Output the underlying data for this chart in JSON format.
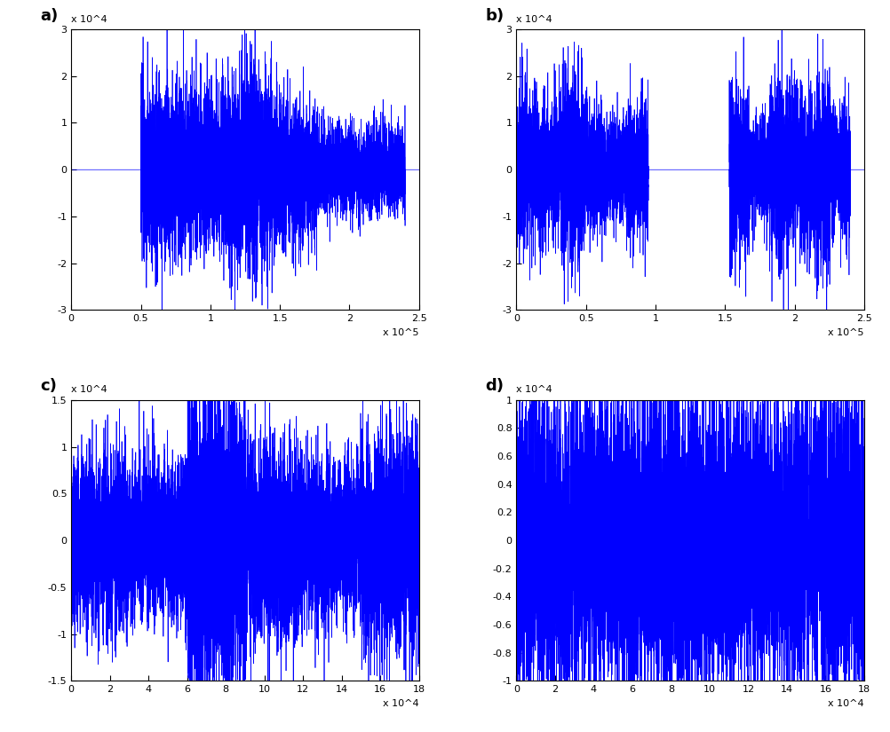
{
  "plot_color": "#0000FF",
  "background_color": "#FFFFFF",
  "panels": [
    {
      "label": "a)",
      "xlim": [
        0,
        250000
      ],
      "ylim": [
        -30000,
        30000
      ],
      "yticks": [
        -30000,
        -20000,
        -10000,
        0,
        10000,
        20000,
        30000
      ],
      "ytick_labels": [
        "-3",
        "-2",
        "-1",
        "0",
        "1",
        "2",
        "3"
      ],
      "xticks": [
        0,
        50000,
        100000,
        150000,
        200000,
        250000
      ],
      "xtick_labels": [
        "0",
        "0.5",
        "1",
        "1.5",
        "2",
        "2.5"
      ],
      "xscale_label": "x 10^5",
      "yscale_label": "x 10^4",
      "signal_start": 50000,
      "signal_end": 240000,
      "gap_start": -1,
      "gap_end": -1,
      "has_gap": false,
      "amplitude": 12000,
      "peak_amplitude": 27000
    },
    {
      "label": "b)",
      "xlim": [
        0,
        250000
      ],
      "ylim": [
        -30000,
        30000
      ],
      "yticks": [
        -30000,
        -20000,
        -10000,
        0,
        10000,
        20000,
        30000
      ],
      "ytick_labels": [
        "-3",
        "-2",
        "-1",
        "0",
        "1",
        "2",
        "3"
      ],
      "xticks": [
        0,
        50000,
        100000,
        150000,
        200000,
        250000
      ],
      "xtick_labels": [
        "0",
        "0.5",
        "1",
        "1.5",
        "2",
        "2.5"
      ],
      "xscale_label": "x 10^5",
      "yscale_label": "x 10^4",
      "signal_start": 0,
      "signal_end": 95000,
      "gap_start": 95000,
      "gap_end": 153000,
      "signal_start2": 153000,
      "signal_end2": 240000,
      "has_gap": true,
      "amplitude": 12000,
      "peak_amplitude": 27000
    },
    {
      "label": "c)",
      "xlim": [
        0,
        180000
      ],
      "ylim": [
        -15000,
        15000
      ],
      "yticks": [
        -15000,
        -10000,
        -5000,
        0,
        5000,
        10000,
        15000
      ],
      "ytick_labels": [
        "-1.5",
        "-1",
        "-0.5",
        "0",
        "0.5",
        "1",
        "1.5"
      ],
      "xticks": [
        0,
        20000,
        40000,
        60000,
        80000,
        100000,
        120000,
        140000,
        160000,
        180000
      ],
      "xtick_labels": [
        "0",
        "2",
        "4",
        "6",
        "8",
        "10",
        "12",
        "14",
        "16",
        "18"
      ],
      "xscale_label": "x 10^4",
      "yscale_label": "x 10^4",
      "signal_start": 0,
      "signal_end": 180000,
      "gap_start": -1,
      "gap_end": -1,
      "has_gap": false,
      "amplitude": 10000,
      "peak_amplitude": 15000
    },
    {
      "label": "d)",
      "xlim": [
        0,
        180000
      ],
      "ylim": [
        -10000,
        10000
      ],
      "yticks": [
        -10000,
        -8000,
        -6000,
        -4000,
        -2000,
        0,
        2000,
        4000,
        6000,
        8000,
        10000
      ],
      "ytick_labels": [
        "-1",
        "-0.8",
        "-0.6",
        "-0.4",
        "-0.2",
        "0",
        "0.2",
        "0.4",
        "0.6",
        "0.8",
        "1"
      ],
      "xticks": [
        0,
        20000,
        40000,
        60000,
        80000,
        100000,
        120000,
        140000,
        160000,
        180000
      ],
      "xtick_labels": [
        "0",
        "2",
        "4",
        "6",
        "8",
        "10",
        "12",
        "14",
        "16",
        "18"
      ],
      "xscale_label": "x 10^4",
      "yscale_label": "x 10^4",
      "signal_start": 0,
      "signal_end": 180000,
      "gap_start": -1,
      "gap_end": -1,
      "has_gap": false,
      "amplitude": 8000,
      "peak_amplitude": 10000
    }
  ]
}
